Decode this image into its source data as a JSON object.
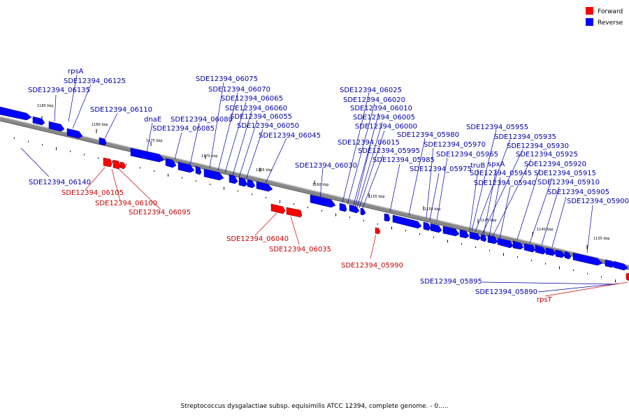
{
  "legend": [
    {
      "label": "Forward",
      "color": "#ff0000"
    },
    {
      "label": "Reverse",
      "color": "#0000ff"
    }
  ],
  "caption": "Streptococcus dysgalactiae subsp. equisimilis ATCC 12394, complete genome. - 0.....",
  "colors": {
    "forward": "#ff0000",
    "reverse": "#0000ff",
    "backbone": "#888888"
  },
  "scale_labels": [
    "1185 kbp",
    "1180 kbp",
    "1175 kbp",
    "1170 kbp",
    "1165 kbp",
    "1160 kbp",
    "1155 kbp",
    "1150 kbp",
    "1145 kbp",
    "1140 kbp",
    "1135 kbp"
  ],
  "gene_labels": [
    {
      "text": "rpsA",
      "strand": "reverse"
    },
    {
      "text": "SDE12394_06125",
      "strand": "reverse"
    },
    {
      "text": "SDE12394_06135",
      "strand": "reverse"
    },
    {
      "text": "SDE12394_06110",
      "strand": "reverse"
    },
    {
      "text": "dnaE",
      "strand": "reverse"
    },
    {
      "text": "SDE12394_06085",
      "strand": "reverse"
    },
    {
      "text": "SDE12394_06080",
      "strand": "reverse"
    },
    {
      "text": "SDE12394_06075",
      "strand": "reverse"
    },
    {
      "text": "SDE12394_06070",
      "strand": "reverse"
    },
    {
      "text": "SDE12394_06065",
      "strand": "reverse"
    },
    {
      "text": "SDE12394_06060",
      "strand": "reverse"
    },
    {
      "text": "SDE12394_06055",
      "strand": "reverse"
    },
    {
      "text": "SDE12394_06050",
      "strand": "reverse"
    },
    {
      "text": "SDE12394_06045",
      "strand": "reverse"
    },
    {
      "text": "SDE12394_06140",
      "strand": "reverse"
    },
    {
      "text": "SDE12394_06105",
      "strand": "forward"
    },
    {
      "text": "SDE12394_06100",
      "strand": "forward"
    },
    {
      "text": "SDE12394_06095",
      "strand": "forward"
    },
    {
      "text": "SDE12394_06040",
      "strand": "forward"
    },
    {
      "text": "SDE12394_06035",
      "strand": "forward"
    },
    {
      "text": "SDE12394_06030",
      "strand": "reverse"
    },
    {
      "text": "SDE12394_06025",
      "strand": "reverse"
    },
    {
      "text": "SDE12394_06020",
      "strand": "reverse"
    },
    {
      "text": "SDE12394_06010",
      "strand": "reverse"
    },
    {
      "text": "SDE12394_06005",
      "strand": "reverse"
    },
    {
      "text": "SDE12394_06000",
      "strand": "reverse"
    },
    {
      "text": "SDE12394_06015",
      "strand": "reverse"
    },
    {
      "text": "SDE12394_05995",
      "strand": "reverse"
    },
    {
      "text": "SDE12394_05985",
      "strand": "reverse"
    },
    {
      "text": "SDE12394_05980",
      "strand": "reverse"
    },
    {
      "text": "SDE12394_05975",
      "strand": "reverse"
    },
    {
      "text": "SDE12394_05970",
      "strand": "reverse"
    },
    {
      "text": "SDE12394_05965",
      "strand": "reverse"
    },
    {
      "text": "SDE12394_05990",
      "strand": "forward"
    },
    {
      "text": "SDE12394_05955",
      "strand": "reverse"
    },
    {
      "text": "SDE12394_05935",
      "strand": "reverse"
    },
    {
      "text": "SDE12394_05930",
      "strand": "reverse"
    },
    {
      "text": "SDE12394_05925",
      "strand": "reverse"
    },
    {
      "text": "truB",
      "strand": "reverse"
    },
    {
      "text": "spxA",
      "strand": "reverse"
    },
    {
      "text": "SDE12394_05945",
      "strand": "reverse"
    },
    {
      "text": "SDE12394_05920",
      "strand": "reverse"
    },
    {
      "text": "SDE12394_05940",
      "strand": "reverse"
    },
    {
      "text": "SDE12394_05915",
      "strand": "reverse"
    },
    {
      "text": "SDE12394_05910",
      "strand": "reverse"
    },
    {
      "text": "SDE12394_05905",
      "strand": "reverse"
    },
    {
      "text": "SDE12394_05900",
      "strand": "reverse"
    },
    {
      "text": "SDE12394_05895",
      "strand": "reverse"
    },
    {
      "text": "SDE12394_05890",
      "strand": "reverse"
    },
    {
      "text": "rpsT",
      "strand": "forward"
    }
  ]
}
